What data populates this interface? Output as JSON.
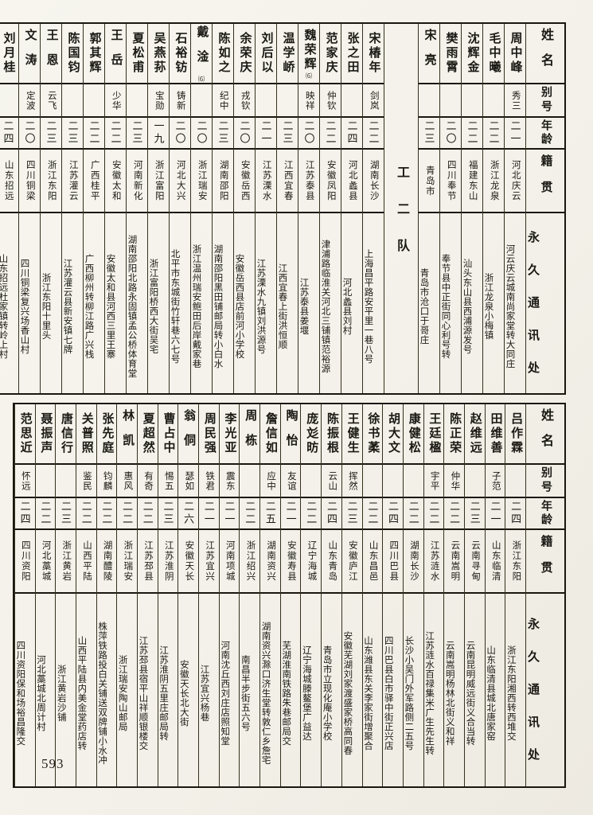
{
  "page": {
    "number": "593"
  },
  "headers": {
    "name": "姓名",
    "alias": "别号",
    "age": "年龄",
    "native_place": "籍贯",
    "address": "永久通讯处"
  },
  "top_table": {
    "columns": [
      {
        "name": "周中峰",
        "alias": "秀三",
        "age": "二一",
        "native": "河北庆云",
        "address": "河云庆云城南尚家堂转大同庄"
      },
      {
        "name": "毛中曦",
        "alias": "",
        "age": "二二",
        "native": "浙江龙泉",
        "address": "浙江龙泉小梅镇"
      },
      {
        "name": "沈辉金",
        "alias": "",
        "age": "二二",
        "native": "福建东山",
        "address": "汕头东山县西浦源发号"
      },
      {
        "name": "樊雨霄",
        "alias": "",
        "age": "二〇",
        "native": "四川奉节",
        "address": "奉节县中正街同心利号转"
      },
      {
        "name": "宋亮",
        "alias": "",
        "age": "二三",
        "native": "青岛市",
        "address": "青岛市沧口于哥庄"
      },
      {
        "separator": "工二队"
      },
      {
        "name": "宋椿年",
        "alias": "剑岚",
        "age": "二二",
        "native": "湖南长沙",
        "address": "上海昌平路安平里一巷八号"
      },
      {
        "name": "张之田",
        "alias": "",
        "age": "二四",
        "native": "河北蠡县",
        "address": "河北蠡县刘村"
      },
      {
        "name": "范家庆",
        "alias": "仲钦",
        "age": "二二",
        "native": "安徽凤阳",
        "address": "津浦路临淮关河北三铺镇范裕源"
      },
      {
        "name": "魏荣辉",
        "note": "⑹",
        "alias": "映祥",
        "age": "二〇",
        "native": "江苏泰县",
        "address": "江苏泰县姜堰"
      },
      {
        "name": "温学峤",
        "alias": "",
        "age": "二三",
        "native": "江西宜春",
        "address": "江西宜春上街洪恒顺"
      },
      {
        "name": "刘后以",
        "alias": "",
        "age": "二一",
        "native": "江苏溧水",
        "address": "江苏溧水九镇刘洪源号"
      },
      {
        "name": "余荣庆",
        "alias": "戎钦",
        "age": "二〇",
        "native": "安徽岳西",
        "address": "安徽岳西县店前河小学校"
      },
      {
        "name": "陈如之",
        "alias": "纪中",
        "age": "二三",
        "native": "湖南邵阳",
        "address": "湖南邵阳黑田铺邮局转小白水"
      },
      {
        "name": "戴淦",
        "note": "⑹",
        "alias": "",
        "age": "二〇",
        "native": "浙江瑞安",
        "address": "浙江温州瑞安鲍田后岸戴家巷"
      },
      {
        "name": "石裕钫",
        "alias": "铸新",
        "age": "二〇",
        "native": "河北大兴",
        "address": "北平市东城街竹轩巷六七号"
      },
      {
        "name": "吴燕荪",
        "alias": "宝勋",
        "age": "一九",
        "native": "浙江富阳",
        "address": "浙江富阳桥西大街吴宅"
      },
      {
        "name": "夏松甫",
        "alias": "",
        "age": "二三",
        "native": "河南新化",
        "address": "湖南邵阳北路永固镇孟公桥体育堂"
      },
      {
        "name": "王岳",
        "alias": "少华",
        "age": "二二",
        "native": "安徽太和",
        "address": "安徽太和县河西三里王寨"
      },
      {
        "name": "郭其辉",
        "alias": "",
        "age": "二二",
        "native": "广西桂平",
        "address": "广西柳州转柳江路广兴栈"
      },
      {
        "name": "陈国钧",
        "alias": "",
        "age": "二三",
        "native": "江苏灌云",
        "address": "江苏灌云县新安镇七牌"
      },
      {
        "name": "王恩",
        "alias": "云飞",
        "age": "二三",
        "native": "浙江东阳",
        "address": "浙江东阳十里头"
      },
      {
        "name": "文涛",
        "alias": "定波",
        "age": "二〇",
        "native": "四川铜梁",
        "address": "四川铜梁复兴场香山村"
      },
      {
        "name": "刘月桂",
        "alias": "",
        "age": "二四",
        "native": "山东招远",
        "address": "山东招远杜家镇转岭上村"
      }
    ]
  },
  "bottom_table": {
    "columns": [
      {
        "name": "吕作霖",
        "alias": "",
        "age": "二四",
        "native": "浙江东阳",
        "address": "浙江东阳湘西转西堆交"
      },
      {
        "name": "田维善",
        "alias": "子范",
        "age": "二一",
        "native": "山东临清",
        "address": "山东临清县城北唐家窑"
      },
      {
        "name": "赵维远",
        "alias": "",
        "age": "二三",
        "native": "云南寻甸",
        "address": "云南昆明威远街义合当转"
      },
      {
        "name": "陈正荣",
        "alias": "仲华",
        "age": "二二",
        "native": "云南嵩明",
        "address": "云南嵩明杨林北街义和祥"
      },
      {
        "name": "王廷楹",
        "alias": "宇平",
        "age": "二二",
        "native": "江苏涟水",
        "address": "江苏涟水百禄集米广生先生转"
      },
      {
        "name": "康健松",
        "alias": "",
        "age": "二二",
        "native": "湖南长沙",
        "address": "长沙小吴门外军路侧二五号"
      },
      {
        "name": "胡大文",
        "alias": "",
        "age": "二四",
        "native": "四川巴县",
        "address": "四川巴县白市驿中街正兴店"
      },
      {
        "name": "徐书葇",
        "alias": "",
        "age": "二二",
        "native": "山东昌邑",
        "address": "山东潍县东关李家街增聚合"
      },
      {
        "name": "王健生",
        "alias": "挥然",
        "age": "二三",
        "native": "安徽庐江",
        "address": "安徽芜湖刘家渡盛家桥高同春"
      },
      {
        "name": "陈振根",
        "alias": "云山",
        "age": "二四",
        "native": "山东青岛",
        "address": "青岛市立现化庵小学校"
      },
      {
        "name": "庞彣昉",
        "alias": "",
        "age": "二二",
        "native": "辽宁海城",
        "address": "辽宁海城滕鳌堡广益达"
      },
      {
        "name": "陶怡",
        "alias": "友谊",
        "age": "二一",
        "native": "安徽寿县",
        "address": "芜湖淮南铁路朱巷邮局交"
      },
      {
        "name": "詹信如",
        "alias": "应中",
        "age": "二五",
        "native": "湖南资兴",
        "address": "湖南资兴滁口济生堂转敦仁乡詹宅"
      },
      {
        "name": "周栋",
        "alias": "",
        "age": "二二",
        "native": "浙江绍兴",
        "address": "南昌半步街五六号"
      },
      {
        "name": "李光亚",
        "alias": "震东",
        "age": "二一",
        "native": "河南项城",
        "address": "河南沈丘西刘庄店照知堂"
      },
      {
        "name": "周民强",
        "alias": "铁君",
        "age": "二一",
        "native": "江苏宜兴",
        "address": "江苏宜兴杨巷"
      },
      {
        "name": "翁侗",
        "alias": "瑟如",
        "age": "二六",
        "native": "安徽天长",
        "address": "安徽天长北大街"
      },
      {
        "name": "曹占中",
        "alias": "惕五",
        "age": "二三",
        "native": "江苏淮阴",
        "address": "江苏淮阴五里庄邮局转"
      },
      {
        "name": "夏超然",
        "alias": "有奇",
        "age": "二二",
        "native": "江苏邳县",
        "address": "江苏邳县宿平山祥顺银楼交"
      },
      {
        "name": "林凯",
        "alias": "惠风",
        "age": "二二",
        "native": "浙江瑞安",
        "address": "浙江瑞安陶山邮局"
      },
      {
        "name": "张先庭",
        "alias": "钧麟",
        "age": "二二",
        "native": "湖南醴陵",
        "address": "株萍铁路投白关铺送双牌铺小水冲"
      },
      {
        "name": "关普照",
        "alias": "鉴民",
        "age": "二二",
        "native": "山西平陆",
        "address": "山西平陆县内美金堂药店转"
      },
      {
        "name": "唐信行",
        "alias": "",
        "age": "二三",
        "native": "浙江黄岩",
        "address": "浙江黄岩沙铺"
      },
      {
        "name": "聂振声",
        "alias": "",
        "age": "二二",
        "native": "河北藁城",
        "address": "河北藁城北周计村"
      },
      {
        "name": "范思近",
        "alias": "怀远",
        "age": "二四",
        "native": "四川资阳",
        "address": "四川资阳保和场裕昌隆交"
      }
    ]
  }
}
